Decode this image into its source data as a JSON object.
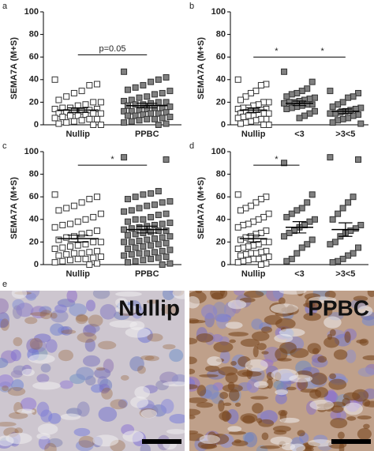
{
  "chart_data": [
    {
      "type": "scatter",
      "label": "a",
      "ylabel": "SEMA7A (M+S)",
      "ylim": [
        0,
        100
      ],
      "yticks": [
        0,
        20,
        40,
        60,
        80,
        100
      ],
      "categories": [
        "Nullip",
        "PPBC"
      ],
      "annotations": [
        "p=0.05"
      ],
      "series": [
        {
          "name": "Nullip",
          "color": "#ffffff",
          "mean": 13,
          "sem": 2,
          "values": [
            40,
            36,
            35,
            30,
            28,
            25,
            22,
            20,
            20,
            18,
            17,
            15,
            15,
            14,
            14,
            13,
            12,
            12,
            11,
            10,
            10,
            10,
            9,
            8,
            8,
            7,
            6,
            5,
            5,
            4,
            3,
            2,
            1,
            0,
            0
          ]
        },
        {
          "name": "PPBC",
          "color": "#808080",
          "mean": 17,
          "sem": 2,
          "values": [
            47,
            42,
            40,
            38,
            35,
            33,
            31,
            30,
            28,
            27,
            25,
            24,
            22,
            21,
            20,
            20,
            19,
            18,
            18,
            17,
            16,
            15,
            15,
            14,
            13,
            12,
            12,
            11,
            10,
            10,
            9,
            8,
            8,
            7,
            6,
            5,
            5,
            4,
            3,
            2,
            1,
            0
          ]
        }
      ]
    },
    {
      "type": "scatter",
      "label": "b",
      "ylabel": "SEMA7A (M+S)",
      "ylim": [
        0,
        100
      ],
      "yticks": [
        0,
        20,
        40,
        60,
        80,
        100
      ],
      "categories": [
        "Nullip",
        "<3",
        ">3<5"
      ],
      "annotations": [
        "*",
        "*"
      ],
      "series": [
        {
          "name": "Nullip",
          "color": "#ffffff",
          "mean": 13,
          "sem": 2,
          "values": [
            40,
            36,
            35,
            30,
            28,
            25,
            22,
            20,
            20,
            18,
            17,
            15,
            15,
            14,
            14,
            13,
            12,
            12,
            11,
            10,
            10,
            10,
            9,
            8,
            8,
            7,
            6,
            5,
            5,
            4,
            3,
            2,
            1,
            0,
            0
          ]
        },
        {
          "name": "<3",
          "color": "#808080",
          "mean": 19,
          "sem": 2,
          "values": [
            47,
            38,
            32,
            30,
            28,
            27,
            25,
            24,
            23,
            22,
            21,
            20,
            20,
            19,
            18,
            18,
            17,
            16,
            15,
            14,
            12,
            10,
            8,
            6
          ]
        },
        {
          "name": ">3<5",
          "color": "#808080",
          "mean": 12,
          "sem": 2,
          "values": [
            30,
            28,
            25,
            24,
            20,
            18,
            16,
            15,
            14,
            13,
            12,
            11,
            10,
            10,
            9,
            8,
            6,
            5,
            4,
            2,
            1
          ]
        }
      ]
    },
    {
      "type": "scatter",
      "label": "c",
      "ylabel": "SEMA7A (M+S)",
      "ylim": [
        0,
        100
      ],
      "yticks": [
        0,
        20,
        40,
        60,
        80,
        100
      ],
      "categories": [
        "Nullip",
        "PPBC"
      ],
      "annotations": [
        "*"
      ],
      "series": [
        {
          "name": "Nullip",
          "color": "#ffffff",
          "mean": 23,
          "sem": 3,
          "values": [
            62,
            60,
            58,
            55,
            52,
            50,
            48,
            45,
            42,
            40,
            38,
            36,
            35,
            33,
            30,
            28,
            27,
            25,
            24,
            22,
            20,
            20,
            18,
            17,
            16,
            15,
            14,
            12,
            11,
            10,
            10,
            9,
            8,
            7,
            6,
            5,
            5,
            4,
            3,
            2,
            1,
            0
          ]
        },
        {
          "name": "PPBC",
          "color": "#808080",
          "mean": 31,
          "sem": 3,
          "values": [
            95,
            93,
            65,
            63,
            62,
            60,
            58,
            56,
            55,
            53,
            52,
            50,
            48,
            47,
            45,
            44,
            42,
            40,
            40,
            38,
            37,
            36,
            35,
            34,
            33,
            32,
            31,
            30,
            30,
            29,
            28,
            27,
            26,
            25,
            24,
            23,
            22,
            21,
            20,
            20,
            19,
            18,
            17,
            16,
            15,
            14,
            13,
            12,
            11,
            10,
            10,
            9,
            8,
            7,
            6,
            5,
            4,
            3,
            2,
            1,
            0
          ]
        }
      ]
    },
    {
      "type": "scatter",
      "label": "d",
      "ylabel": "SEMA7A (M+S)",
      "ylim": [
        0,
        100
      ],
      "yticks": [
        0,
        20,
        40,
        60,
        80,
        100
      ],
      "categories": [
        "Nullip",
        "<3",
        ">3<5"
      ],
      "annotations": [
        "*"
      ],
      "series": [
        {
          "name": "Nullip",
          "color": "#ffffff",
          "mean": 23,
          "sem": 3,
          "values": [
            62,
            60,
            58,
            55,
            52,
            50,
            48,
            45,
            42,
            40,
            38,
            36,
            35,
            33,
            30,
            28,
            27,
            25,
            24,
            22,
            20,
            20,
            18,
            17,
            16,
            15,
            14,
            12,
            11,
            10,
            10,
            9,
            8,
            7,
            6,
            5,
            5,
            4,
            3,
            2,
            1,
            0
          ]
        },
        {
          "name": "<3",
          "color": "#808080",
          "mean": 33,
          "sem": 5,
          "values": [
            90,
            62,
            55,
            50,
            48,
            45,
            42,
            40,
            38,
            35,
            33,
            30,
            28,
            25,
            22,
            18,
            15,
            10,
            5,
            3
          ]
        },
        {
          "name": ">3<5",
          "color": "#808080",
          "mean": 31,
          "sem": 6,
          "values": [
            95,
            93,
            60,
            55,
            50,
            45,
            40,
            35,
            32,
            30,
            28,
            25,
            20,
            18,
            15,
            10,
            8,
            5,
            3,
            2
          ]
        }
      ]
    }
  ],
  "figure_e": {
    "label": "e",
    "images": [
      "Nullip",
      "PPBC"
    ]
  }
}
